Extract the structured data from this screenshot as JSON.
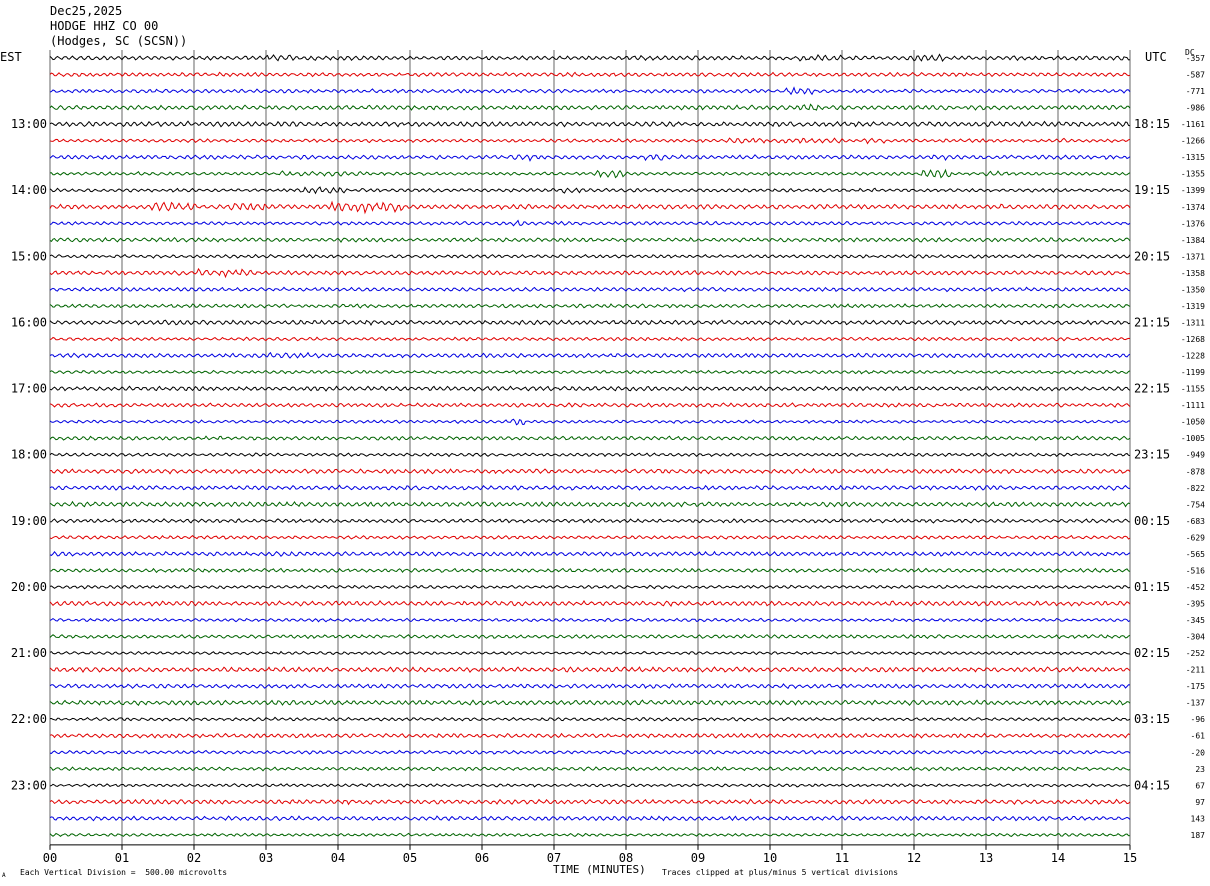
{
  "header": {
    "date": "Dec25,2025",
    "station": "HODGE HHZ CO 00",
    "location": "(Hodges, SC (SCSN))"
  },
  "left_tz": "EST",
  "right_tz": "UTC",
  "dc_label": "DC",
  "footer": {
    "scale_note": "Each Vertical Division =  500.00 microvolts",
    "clip_note": "Traces clipped at plus/minus 5 vertical divisions",
    "corner_mark": "A"
  },
  "trace_colors": [
    "#000000",
    "#e00000",
    "#0000e0",
    "#006400"
  ],
  "chart_data": {
    "type": "line",
    "title": "HODGE HHZ CO 00",
    "xlabel": "TIME (MINUTES)",
    "x_ticks": [
      "00",
      "01",
      "02",
      "03",
      "04",
      "05",
      "06",
      "07",
      "08",
      "09",
      "10",
      "11",
      "12",
      "13",
      "14",
      "15"
    ],
    "xlim": [
      0,
      15
    ],
    "grid": true,
    "rows_per_hour": 4,
    "row_minutes": 15,
    "num_rows": 48,
    "est_hour_labels": [
      "13:00",
      "14:00",
      "15:00",
      "16:00",
      "17:00",
      "18:00",
      "19:00",
      "20:00",
      "21:00",
      "22:00",
      "23:00"
    ],
    "utc_hour_labels": [
      "18:15",
      "19:15",
      "20:15",
      "21:15",
      "22:15",
      "23:15",
      "00:15",
      "01:15",
      "02:15",
      "03:15",
      "04:15"
    ],
    "dc_offsets": [
      -357,
      -587,
      -771,
      -986,
      -1161,
      -1266,
      -1315,
      -1355,
      -1399,
      -1374,
      -1376,
      -1384,
      -1371,
      -1358,
      -1350,
      -1319,
      -1311,
      -1268,
      -1228,
      -1199,
      -1155,
      -1111,
      -1050,
      -1005,
      -949,
      -878,
      -822,
      -754,
      -683,
      -629,
      -565,
      -516,
      -452,
      -395,
      -345,
      -304,
      -252,
      -211,
      -175,
      -137,
      -96,
      -61,
      -20,
      23,
      67,
      97,
      143,
      187
    ]
  }
}
